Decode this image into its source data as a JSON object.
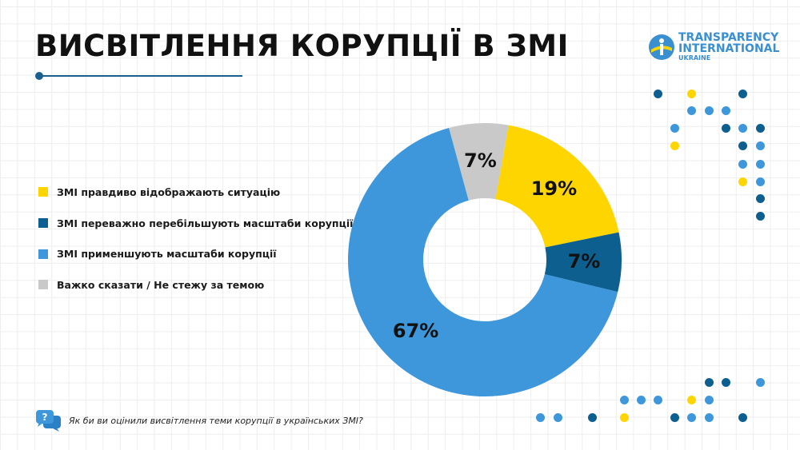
{
  "title": "ВИСВІТЛЕННЯ КОРУПЦІЇ В ЗМІ",
  "logo": {
    "line1": "TRANSPARENCY",
    "line2": "INTERNATIONAL",
    "line3": "UKRAINE"
  },
  "question": "Як би ви оцінили висвітлення теми корупції в українських ЗМІ?",
  "colors": {
    "yellow": "#ffd500",
    "dark_blue": "#0d5f8f",
    "light_blue": "#3d97da",
    "grey": "#c9c9c9"
  },
  "chart_data": {
    "type": "pie",
    "title": "ВИСВІТЛЕННЯ КОРУПЦІЇ В ЗМІ",
    "donut": true,
    "legend_position": "left",
    "slices": [
      {
        "label": "ЗМІ правдиво відображають ситуацію",
        "value": 19,
        "display": "19%",
        "color": "#ffd500"
      },
      {
        "label": "ЗМІ переважно перебільшують масштаби корупції",
        "value": 7,
        "display": "7%",
        "color": "#0d5f8f"
      },
      {
        "label": "ЗМІ применшують масштаби корупції",
        "value": 67,
        "display": "67%",
        "color": "#3d97da"
      },
      {
        "label": "Важко сказати / Не стежу за темою",
        "value": 7,
        "display": "7%",
        "color": "#c9c9c9"
      }
    ]
  }
}
